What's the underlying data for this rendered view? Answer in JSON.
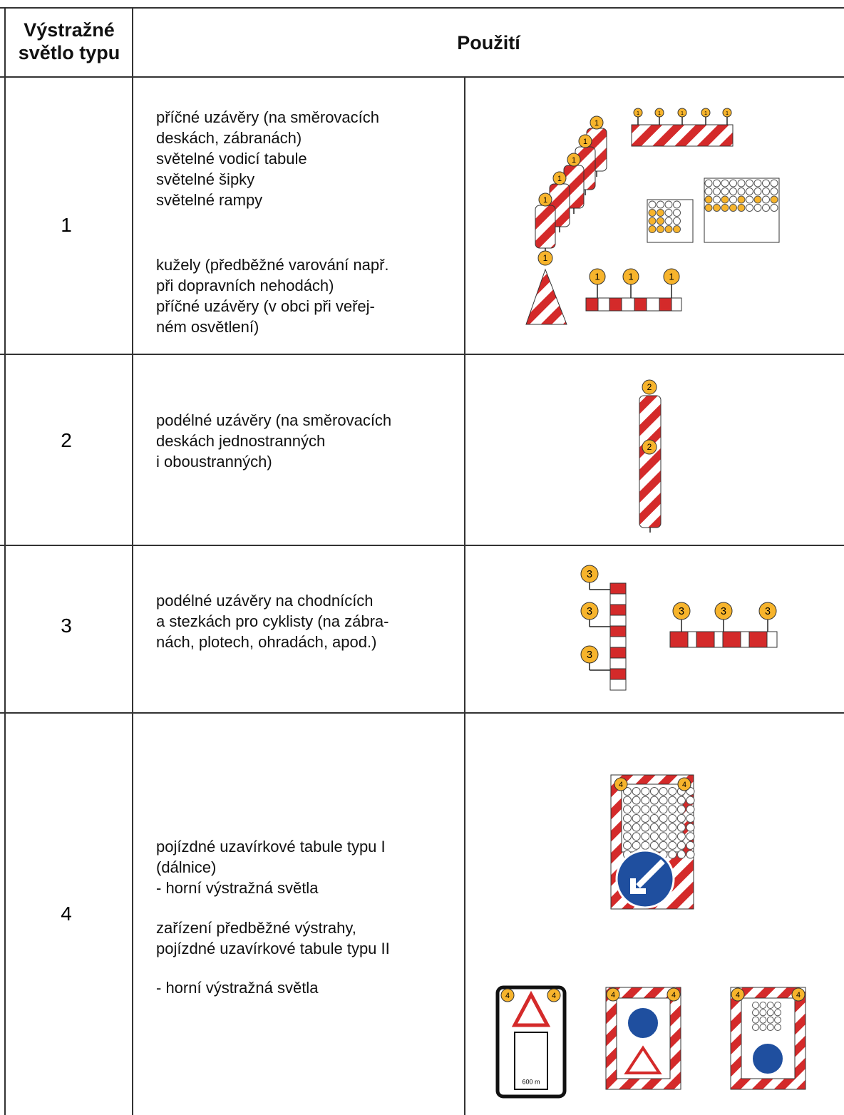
{
  "header": {
    "type_lines": [
      "Výstražné",
      "světlo typu"
    ],
    "usage": "Použití"
  },
  "rows": [
    {
      "type": "1",
      "usage_groups": [
        [
          "příčné uzávěry (na směrovacích",
          "deskách, zábranách)",
          "světelné vodicí tabule",
          "světelné šipky",
          "světelné rampy"
        ],
        [
          "kužely (předběžné varování např.",
          "při dopravních nehodách)",
          "příčné uzávěry (v obci při veřej-",
          "ném osvětlení)"
        ]
      ]
    },
    {
      "type": "2",
      "usage_groups": [
        [
          "podélné uzávěry (na směrovacích",
          "deskách jednostranných",
          "i oboustranných)"
        ]
      ]
    },
    {
      "type": "3",
      "usage_groups": [
        [
          "podélné uzávěry na chodnících",
          "a stezkách pro cyklisty (na zábra-",
          "nách, plotech, ohradách, apod.)"
        ]
      ]
    },
    {
      "type": "4",
      "usage_groups": [
        [
          "pojízdné uzavírkové tabule typu I",
          "(dálnice)",
          "- horní výstražná světla"
        ],
        [
          "zařízení předběžné výstrahy,",
          "pojízdné uzavírkové tabule typu II"
        ],
        [
          "- horní výstražná světla"
        ]
      ],
      "sign_caption": "600 m"
    }
  ]
}
